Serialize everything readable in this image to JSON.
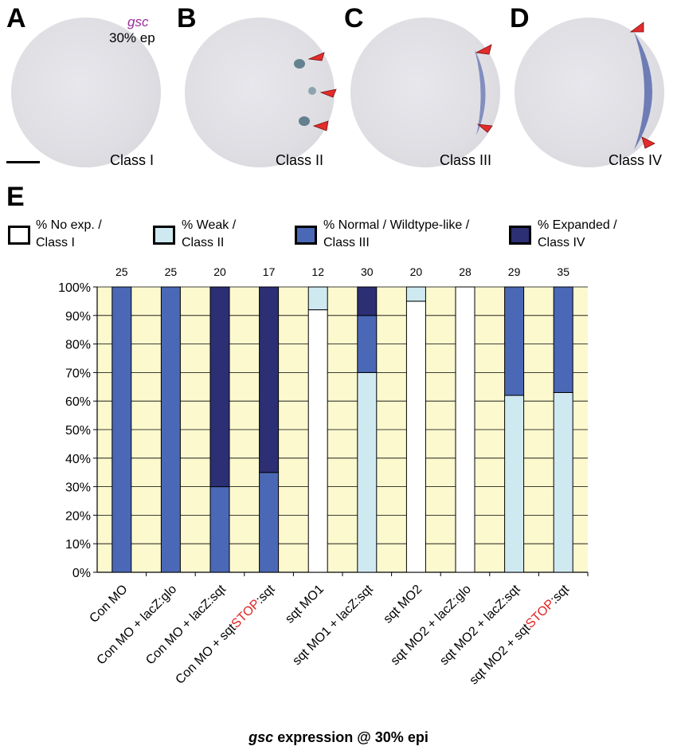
{
  "panels": [
    {
      "letter": "A",
      "class_label": "Class I"
    },
    {
      "letter": "B",
      "class_label": "Class II"
    },
    {
      "letter": "C",
      "class_label": "Class III"
    },
    {
      "letter": "D",
      "class_label": "Class IV"
    }
  ],
  "panel_a_gene": "gsc",
  "panel_a_stage": "30% ep",
  "panel_e_letter": "E",
  "legend": [
    {
      "line1": "% No exp. /",
      "line2": "Class I",
      "color": "#ffffff"
    },
    {
      "line1": "% Weak /",
      "line2": "Class II",
      "color": "#cfe9f1"
    },
    {
      "line1": "% Normal / Wildtype-like /",
      "line2": "Class III",
      "color": "#4a68b5"
    },
    {
      "line1": "% Expanded /",
      "line2": "Class IV",
      "color": "#2c2f74"
    }
  ],
  "footer_gene": "gsc",
  "footer_rest": " expression @ 30% epi",
  "chart_data": {
    "type": "bar",
    "stacked": true,
    "ylim": [
      0,
      100
    ],
    "yticks": [
      "0%",
      "10%",
      "20%",
      "30%",
      "40%",
      "50%",
      "60%",
      "70%",
      "80%",
      "90%",
      "100%"
    ],
    "plot_background": "#fcf9cf",
    "categories": [
      {
        "pre": "Con MO",
        "stop": "",
        "post": ""
      },
      {
        "pre": "Con MO + lacZ:glo",
        "stop": "",
        "post": ""
      },
      {
        "pre": "Con MO + lacZ:sqt",
        "stop": "",
        "post": ""
      },
      {
        "pre": "Con MO + sqt",
        "stop": "STOP",
        "post": ":sqt"
      },
      {
        "pre": "sqt MO1",
        "stop": "",
        "post": ""
      },
      {
        "pre": "sqt MO1 + lacZ:sqt",
        "stop": "",
        "post": ""
      },
      {
        "pre": "sqt MO2",
        "stop": "",
        "post": ""
      },
      {
        "pre": "sqt MO2 + lacZ:glo",
        "stop": "",
        "post": ""
      },
      {
        "pre": "sqt MO2 + lacZ:sqt",
        "stop": "",
        "post": ""
      },
      {
        "pre": "sqt MO2 + sqt",
        "stop": "STOP",
        "post": ":sqt"
      }
    ],
    "n_values": [
      "25",
      "25",
      "20",
      "17",
      "12",
      "30",
      "20",
      "28",
      "29",
      "35"
    ],
    "series": [
      {
        "name": "% No exp. / Class I",
        "color": "#ffffff",
        "values": [
          0,
          0,
          0,
          0,
          92,
          0,
          95,
          100,
          0,
          0
        ]
      },
      {
        "name": "% Weak / Class II",
        "color": "#cfe9f1",
        "values": [
          0,
          0,
          0,
          0,
          8,
          70,
          5,
          0,
          62,
          63
        ]
      },
      {
        "name": "% Normal / Wildtype-like / Class III",
        "color": "#4a68b5",
        "values": [
          100,
          100,
          30,
          35,
          0,
          20,
          0,
          0,
          38,
          37
        ]
      },
      {
        "name": "% Expanded / Class IV",
        "color": "#2c2f74",
        "values": [
          0,
          0,
          70,
          65,
          0,
          10,
          0,
          0,
          0,
          0
        ]
      }
    ],
    "stop_color": "#e32222"
  }
}
